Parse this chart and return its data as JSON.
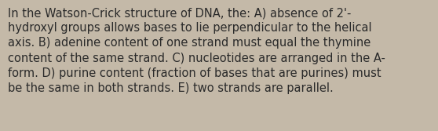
{
  "text": "In the Watson-Crick structure of DNA, the: A) absence of 2'-\nhydroxyl groups allows bases to lie perpendicular to the helical\naxis. B) adenine content of one strand must equal the thymine\ncontent of the same strand. C) nucleotides are arranged in the A-\nform. D) purine content (fraction of bases that are purines) must\nbe the same in both strands. E) two strands are parallel.",
  "background_color": "#c4b9a8",
  "text_color": "#2a2a2a",
  "font_size": 10.5,
  "fig_width": 5.58,
  "fig_height": 1.67,
  "dpi": 100
}
